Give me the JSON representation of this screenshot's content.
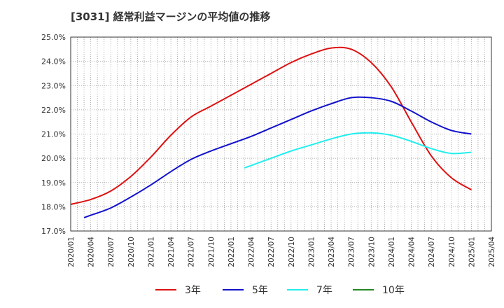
{
  "title": "[3031]  経常利益マージンの平均値の推移",
  "chart_data": {
    "type": "line",
    "title": "[3031]  経常利益マージンの平均値の推移",
    "xlabel": "",
    "ylabel": "",
    "ylim": [
      17.0,
      25.0
    ],
    "y_ticks": [
      "17.0%",
      "18.0%",
      "19.0%",
      "20.0%",
      "21.0%",
      "22.0%",
      "23.0%",
      "24.0%",
      "25.0%"
    ],
    "x_ticks": [
      "2020/01",
      "2020/04",
      "2020/07",
      "2020/10",
      "2021/01",
      "2021/04",
      "2021/07",
      "2021/10",
      "2022/01",
      "2022/04",
      "2022/07",
      "2022/10",
      "2023/01",
      "2023/04",
      "2023/07",
      "2023/10",
      "2024/01",
      "2024/04",
      "2024/07",
      "2024/10",
      "2025/01",
      "2025/04"
    ],
    "x_range": [
      "2020/01",
      "2025/04"
    ],
    "grid": true,
    "legend_position": "bottom",
    "series": [
      {
        "name": "3年",
        "color": "#dd1111",
        "points": [
          [
            "2020/01",
            18.1
          ],
          [
            "2020/04",
            18.3
          ],
          [
            "2020/07",
            18.65
          ],
          [
            "2020/10",
            19.25
          ],
          [
            "2021/01",
            20.05
          ],
          [
            "2021/04",
            20.95
          ],
          [
            "2021/07",
            21.7
          ],
          [
            "2021/10",
            22.15
          ],
          [
            "2022/01",
            22.6
          ],
          [
            "2022/04",
            23.05
          ],
          [
            "2022/07",
            23.5
          ],
          [
            "2022/10",
            23.95
          ],
          [
            "2023/01",
            24.3
          ],
          [
            "2023/04",
            24.55
          ],
          [
            "2023/07",
            24.5
          ],
          [
            "2023/10",
            23.95
          ],
          [
            "2024/01",
            22.95
          ],
          [
            "2024/04",
            21.5
          ],
          [
            "2024/07",
            20.1
          ],
          [
            "2024/10",
            19.2
          ],
          [
            "2025/01",
            18.7
          ]
        ]
      },
      {
        "name": "5年",
        "color": "#1111cc",
        "points": [
          [
            "2020/03",
            17.55
          ],
          [
            "2020/04",
            17.65
          ],
          [
            "2020/07",
            17.95
          ],
          [
            "2020/10",
            18.4
          ],
          [
            "2021/01",
            18.9
          ],
          [
            "2021/04",
            19.45
          ],
          [
            "2021/07",
            19.95
          ],
          [
            "2021/10",
            20.3
          ],
          [
            "2022/01",
            20.6
          ],
          [
            "2022/04",
            20.9
          ],
          [
            "2022/07",
            21.25
          ],
          [
            "2022/10",
            21.6
          ],
          [
            "2023/01",
            21.95
          ],
          [
            "2023/04",
            22.25
          ],
          [
            "2023/07",
            22.5
          ],
          [
            "2023/10",
            22.5
          ],
          [
            "2024/01",
            22.35
          ],
          [
            "2024/04",
            21.95
          ],
          [
            "2024/07",
            21.5
          ],
          [
            "2024/10",
            21.15
          ],
          [
            "2025/01",
            21.0
          ]
        ]
      },
      {
        "name": "7年",
        "color": "#22eeee",
        "points": [
          [
            "2022/03",
            19.6
          ],
          [
            "2022/04",
            19.7
          ],
          [
            "2022/07",
            20.0
          ],
          [
            "2022/10",
            20.3
          ],
          [
            "2023/01",
            20.55
          ],
          [
            "2023/04",
            20.8
          ],
          [
            "2023/07",
            21.0
          ],
          [
            "2023/10",
            21.05
          ],
          [
            "2024/01",
            20.95
          ],
          [
            "2024/04",
            20.7
          ],
          [
            "2024/07",
            20.4
          ],
          [
            "2024/10",
            20.2
          ],
          [
            "2025/01",
            20.25
          ]
        ]
      },
      {
        "name": "10年",
        "color": "#228822",
        "points": []
      }
    ]
  }
}
